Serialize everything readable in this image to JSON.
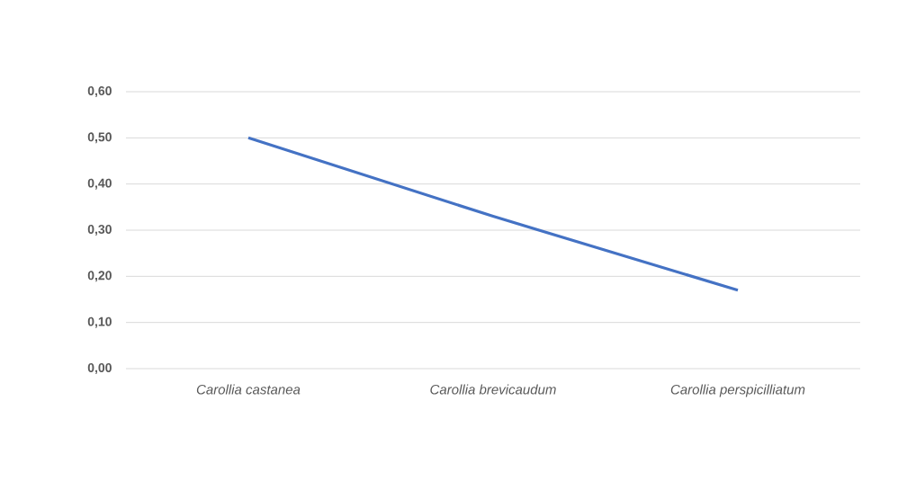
{
  "chart_data": {
    "type": "line",
    "categories": [
      "Carollia castanea",
      "Carollia brevicaudum",
      "Carollia perspicilliatum"
    ],
    "series": [
      {
        "color": "#4472c4",
        "values": [
          0.5,
          0.33,
          0.17
        ]
      }
    ],
    "ylim": [
      0,
      0.6
    ],
    "yticks": [
      {
        "value": 0,
        "label": "0,00"
      },
      {
        "value": 0.1,
        "label": "0,10"
      },
      {
        "value": 0.2,
        "label": "0,20"
      },
      {
        "value": 0.3,
        "label": "0,30"
      },
      {
        "value": 0.4,
        "label": "0,40"
      },
      {
        "value": 0.5,
        "label": "0,50"
      },
      {
        "value": 0.6,
        "label": "0,60"
      }
    ],
    "grid": "y",
    "legend": false,
    "marker": "none",
    "line_style": "solid"
  }
}
